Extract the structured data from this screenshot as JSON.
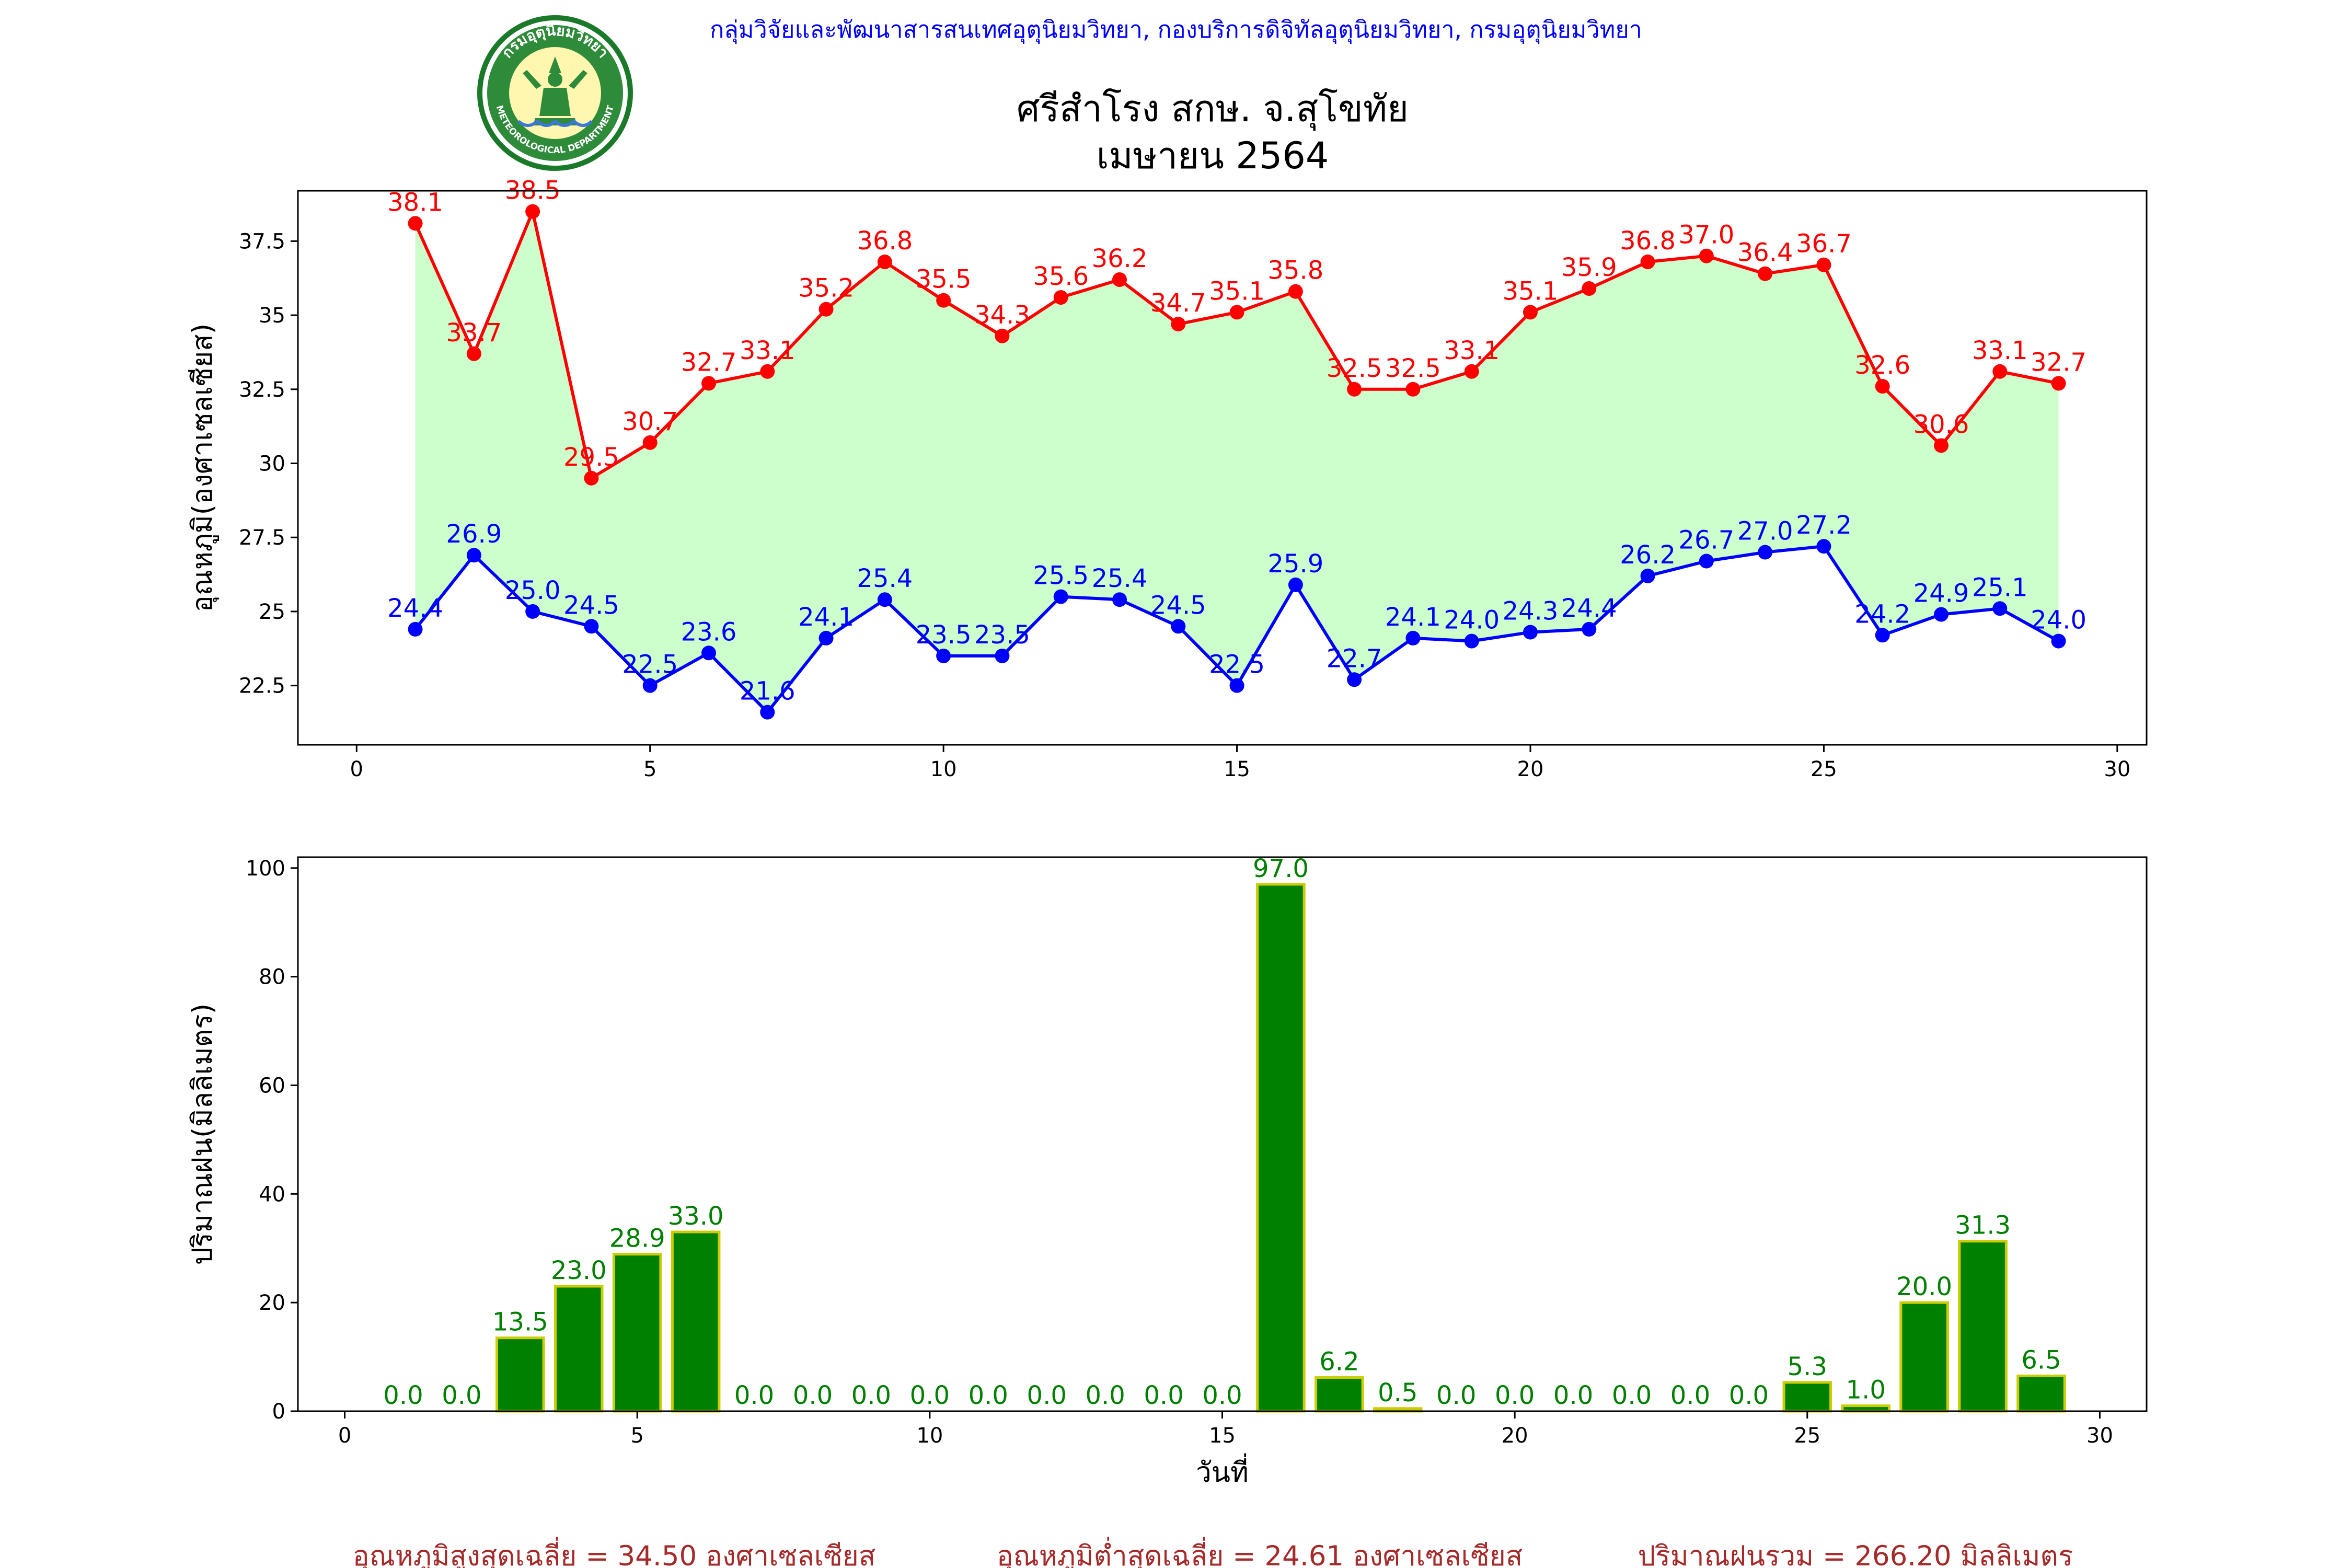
{
  "header": {
    "agency": "กลุ่มวิจัยและพัฒนาสารสนเทศอุตุนิยมวิทยา, กองบริการดิจิทัลอุตุนิยมวิทยา, กรมอุตุนิยมวิทยา",
    "station": "ศรีสำโรง สกษ. จ.สุโขทัย",
    "period": "เมษายน 2564",
    "logo": {
      "top_text": "กรมอุตุนิยมวิทยา",
      "bottom_text": "METEOROLOGICAL DEPARTMENT"
    }
  },
  "colors": {
    "tmax": "#ff0000",
    "tmin": "#0000ff",
    "fill": "#ccffcc",
    "bar": "#008000",
    "bar_edge": "#cccc00",
    "bar_label": "#008000",
    "header": "#0000ff",
    "footer": "#a52a2a"
  },
  "chart_data": [
    {
      "type": "line",
      "ylabel": "อุณหภูมิ(องศาเซลเซียส)",
      "xlabel": "",
      "xlim": [
        -1,
        30.5
      ],
      "ylim": [
        20.5,
        39.2
      ],
      "xticks": [
        0,
        5,
        10,
        15,
        20,
        25,
        30
      ],
      "yticks": [
        22.5,
        25.0,
        27.5,
        30.0,
        32.5,
        35.0,
        37.5
      ],
      "fill_between": true,
      "x": [
        1,
        2,
        3,
        4,
        5,
        6,
        7,
        8,
        9,
        10,
        11,
        12,
        13,
        14,
        15,
        16,
        17,
        18,
        19,
        20,
        21,
        22,
        23,
        24,
        25,
        26,
        27,
        28,
        29
      ],
      "series": [
        {
          "name": "tmax",
          "values": [
            38.1,
            33.7,
            38.5,
            29.5,
            30.7,
            32.7,
            33.1,
            35.2,
            36.8,
            35.5,
            34.3,
            35.6,
            36.2,
            34.7,
            35.1,
            35.8,
            32.5,
            32.5,
            33.1,
            35.1,
            35.9,
            36.8,
            37.0,
            36.4,
            36.7,
            32.6,
            30.6,
            33.1,
            32.7
          ]
        },
        {
          "name": "tmin",
          "values": [
            24.4,
            26.9,
            25.0,
            24.5,
            22.5,
            23.6,
            21.6,
            24.1,
            25.4,
            23.5,
            23.5,
            25.5,
            25.4,
            24.5,
            22.5,
            25.9,
            22.7,
            24.1,
            24.0,
            24.3,
            24.4,
            26.2,
            26.7,
            27.0,
            27.2,
            24.2,
            24.9,
            25.1,
            24.0
          ]
        }
      ]
    },
    {
      "type": "bar",
      "ylabel": "ปริมาณฝน(มิลลิเมตร)",
      "xlabel": "วันที่",
      "xlim": [
        -0.8,
        30.8
      ],
      "ylim": [
        0,
        102
      ],
      "xticks": [
        0,
        5,
        10,
        15,
        20,
        25,
        30
      ],
      "yticks": [
        0,
        20,
        40,
        60,
        80,
        100
      ],
      "x": [
        1,
        2,
        3,
        4,
        5,
        6,
        7,
        8,
        9,
        10,
        11,
        12,
        13,
        14,
        15,
        16,
        17,
        18,
        19,
        20,
        21,
        22,
        23,
        24,
        25,
        26,
        27,
        28,
        29
      ],
      "values": [
        0.0,
        0.0,
        13.5,
        23.0,
        28.9,
        33.0,
        0.0,
        0.0,
        0.0,
        0.0,
        0.0,
        0.0,
        0.0,
        0.0,
        0.0,
        97.0,
        6.2,
        0.5,
        0.0,
        0.0,
        0.0,
        0.0,
        0.0,
        0.0,
        5.3,
        1.0,
        20.0,
        31.3,
        6.5
      ]
    }
  ],
  "footer": {
    "avg_max": "อุณหภูมิสูงสุดเฉลี่ย = 34.50 องศาเซลเซียส",
    "avg_min": "อุณหภูมิต่ำสุดเฉลี่ย = 24.61 องศาเซลเซียส",
    "total_rain": "ปริมาณฝนรวม = 266.20 มิลลิเมตร"
  }
}
